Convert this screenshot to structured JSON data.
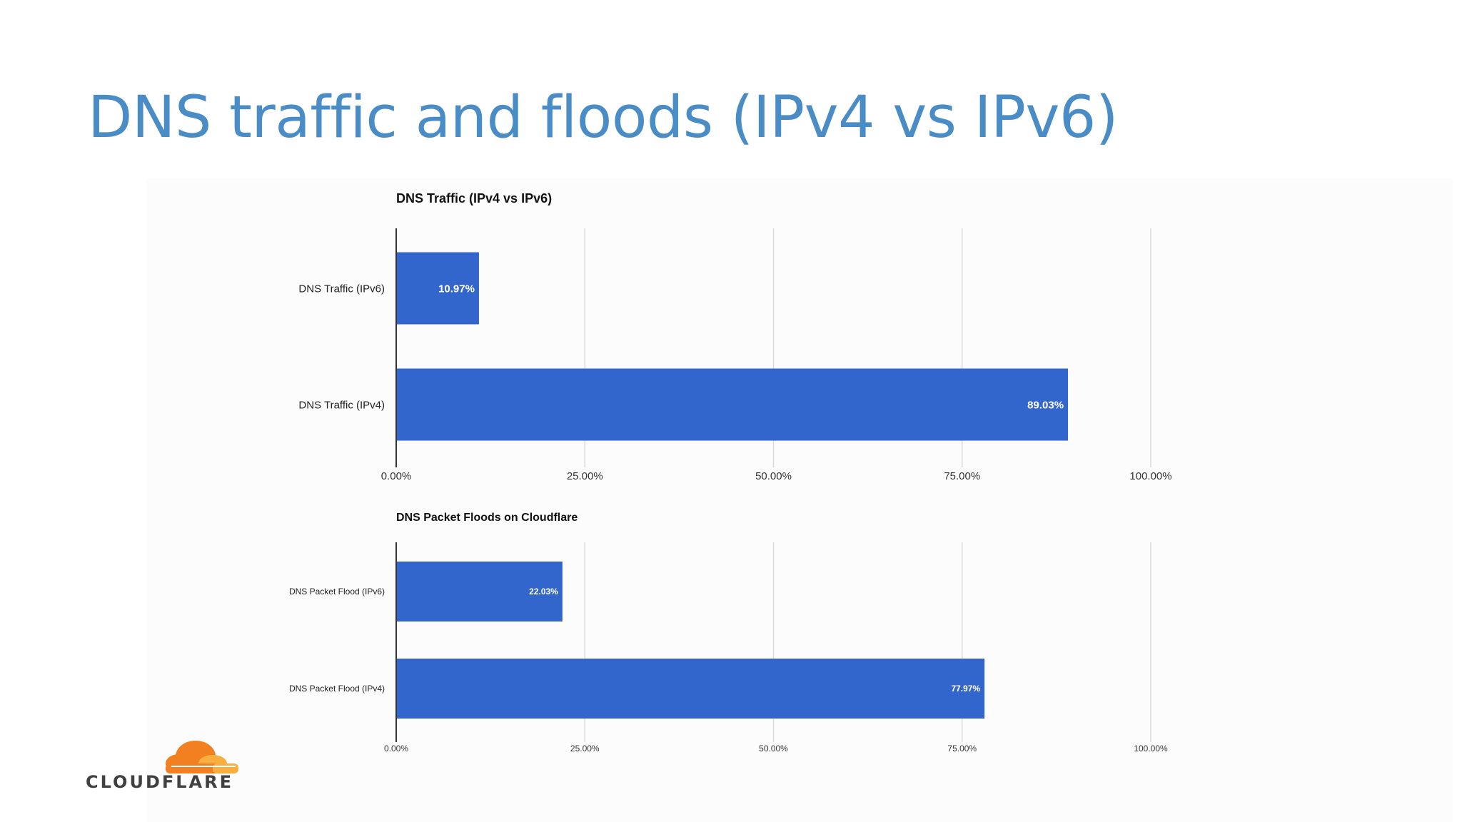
{
  "slide": {
    "title": "DNS traffic and floods (IPv4 vs IPv6)"
  },
  "logo": {
    "text": "CLOUDFLARE",
    "icon": "cloud-icon",
    "colors": {
      "cloud_primary": "#f38020",
      "cloud_secondary": "#faae40",
      "text": "#404041"
    }
  },
  "colors": {
    "title": "#4a8cc6",
    "bar": "#3366cc",
    "gridline": "#d9d9d9",
    "axis": "#333333"
  },
  "chart_data": [
    {
      "type": "bar",
      "orientation": "horizontal",
      "title": "DNS Traffic (IPv4 vs IPv6)",
      "categories": [
        "DNS Traffic (IPv6)",
        "DNS Traffic (IPv4)"
      ],
      "values": [
        10.97,
        89.03
      ],
      "data_labels": [
        "10.97%",
        "89.03%"
      ],
      "xlim": [
        0,
        100
      ],
      "xticks": [
        "0.00%",
        "25.00%",
        "50.00%",
        "75.00%",
        "100.00%"
      ],
      "grid": true,
      "legend": "none"
    },
    {
      "type": "bar",
      "orientation": "horizontal",
      "title": "DNS Packet Floods on Cloudflare",
      "categories": [
        "DNS Packet Flood (IPv6)",
        "DNS Packet Flood (IPv4)"
      ],
      "values": [
        22.03,
        77.97
      ],
      "data_labels": [
        "22.03%",
        "77.97%"
      ],
      "xlim": [
        0,
        100
      ],
      "xticks": [
        "0.00%",
        "25.00%",
        "50.00%",
        "75.00%",
        "100.00%"
      ],
      "grid": true,
      "legend": "none"
    }
  ]
}
